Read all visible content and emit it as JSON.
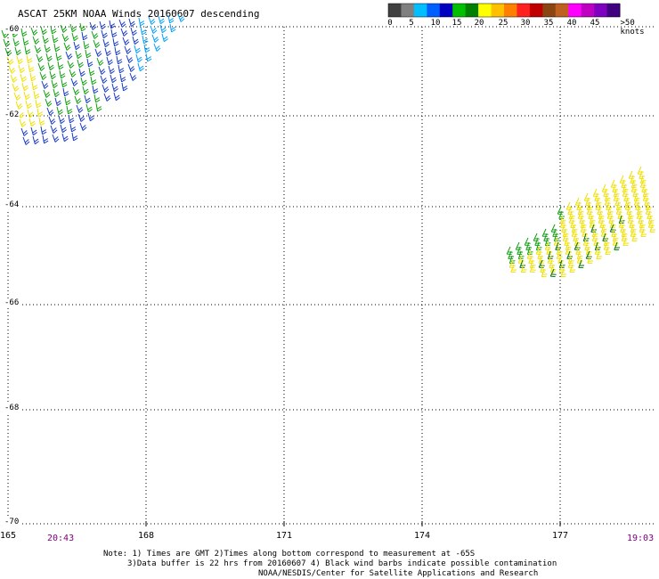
{
  "title": "ASCAT 25KM NOAA Winds 20160607 descending",
  "legend": {
    "colors": [
      "#404040",
      "#808080",
      "#00bfff",
      "#0060ff",
      "#0000c0",
      "#00c000",
      "#008000",
      "#ffff00",
      "#ffc000",
      "#ff8000",
      "#ff2020",
      "#c00000",
      "#8b4513",
      "#c06020",
      "#ff00ff",
      "#c000c0",
      "#8000c0",
      "#400080"
    ],
    "labels": [
      "0",
      "5",
      "10",
      "15",
      "20",
      "25",
      "30",
      "35",
      "40",
      "45",
      ">50 knots"
    ]
  },
  "latitudes": [
    "-60",
    "-62",
    "-64",
    "-66",
    "-68",
    "-70"
  ],
  "longitudes": [
    "165",
    "168",
    "171",
    "174",
    "177"
  ],
  "times": {
    "left": "20:43",
    "right": "19:03"
  },
  "notes": {
    "line1": "Note: 1) Times are GMT 2)Times along bottom correspond to measurement at -65S",
    "line2": "3)Data buffer is 22 hrs from 20160607 4) Black wind barbs indicate possible contamination",
    "line3": "NOAA/NESDIS/Center for Satellite Applications and Research"
  },
  "swath_colors": {
    "blue": "#1a3cc8",
    "light_blue": "#00a0ff",
    "green": "#10a010",
    "yellow": "#f0e000",
    "dark_green": "#007000"
  }
}
